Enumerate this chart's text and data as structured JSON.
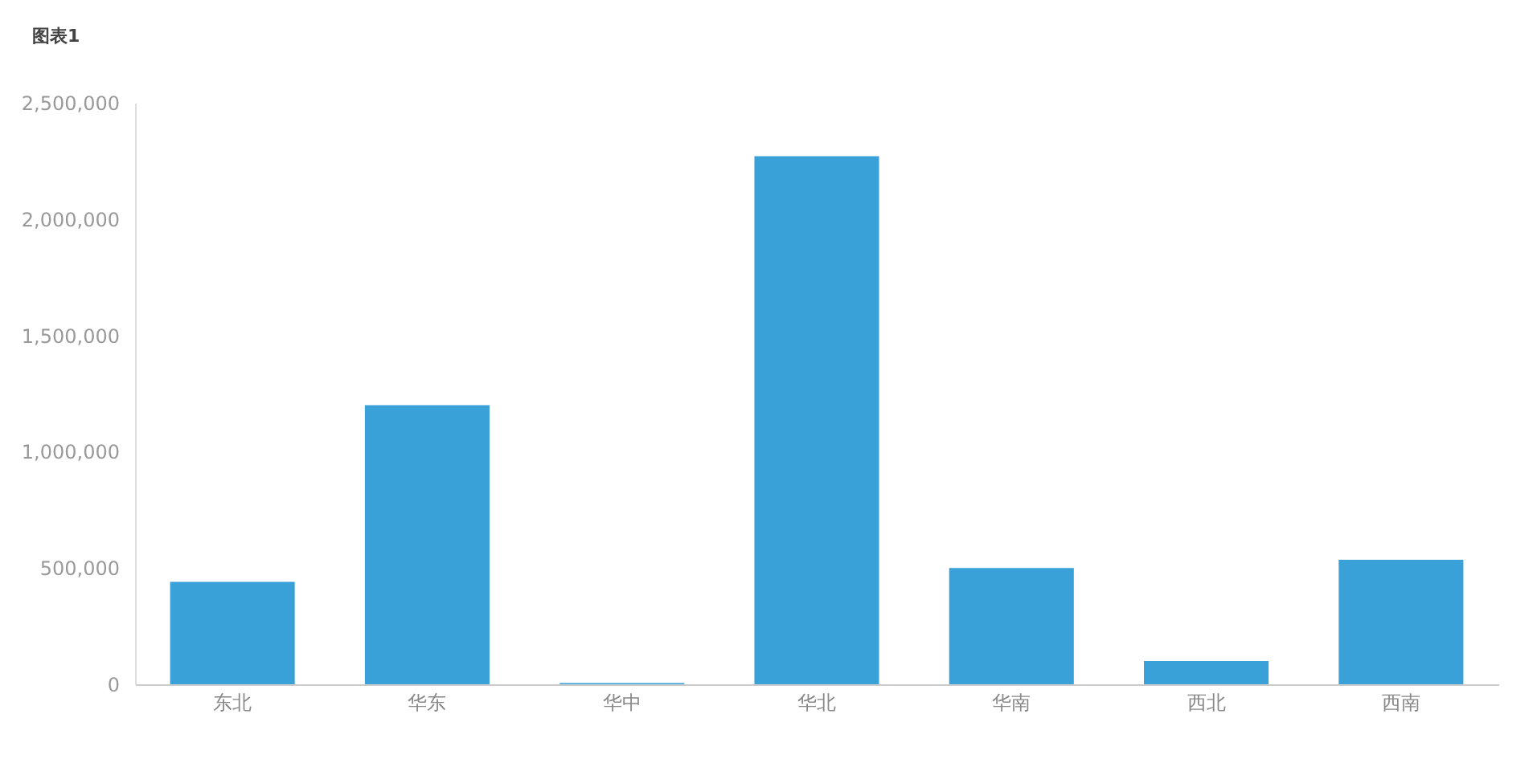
{
  "chart_data": {
    "type": "bar",
    "title": "图表1",
    "categories": [
      "东北",
      "华东",
      "华中",
      "华北",
      "华南",
      "西北",
      "西南"
    ],
    "values": [
      440000,
      1200000,
      5000,
      2270000,
      500000,
      100000,
      535000
    ],
    "color": "#3aa0d8",
    "ylim": [
      0,
      2500000
    ],
    "yticks": [
      0,
      {
        "value": 500000,
        "label": "500,000"
      },
      {
        "value": 1000000,
        "label": "1,000,000"
      },
      {
        "value": 1500000,
        "label": "1,500,000"
      },
      {
        "value": 2000000,
        "label": "2,000,000"
      },
      {
        "value": 2500000,
        "label": "2,500,000"
      }
    ],
    "grid": false,
    "legend": false
  }
}
